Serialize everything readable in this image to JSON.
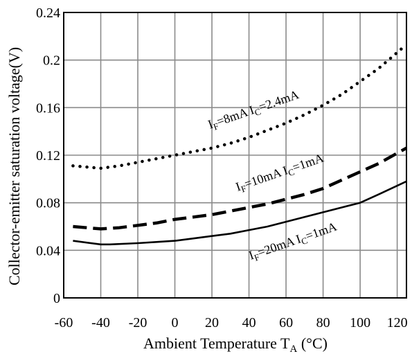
{
  "chart_data": {
    "type": "line",
    "title": "",
    "xlabel": {
      "main": "Ambient Temperature T",
      "sub": "A",
      "unit": " (°C)"
    },
    "ylabel": "Collector-emitter saturation voltage(V)",
    "xlim": [
      -60,
      125
    ],
    "ylim": [
      0,
      0.24
    ],
    "x_ticks": [
      "-60",
      "-40",
      "-20",
      "0",
      "20",
      "40",
      "60",
      "80",
      "100",
      "120"
    ],
    "x_tick_values": [
      -60,
      -40,
      -20,
      0,
      20,
      40,
      60,
      80,
      100,
      120
    ],
    "y_ticks": [
      "0",
      "0.04",
      "0.08",
      "0.12",
      "0.16",
      "0.2",
      "0.24"
    ],
    "y_tick_values": [
      0,
      0.04,
      0.08,
      0.12,
      0.16,
      0.2,
      0.24
    ],
    "grid": true,
    "series": [
      {
        "label": {
          "p1": "I",
          "s1": "F",
          "p2": "=8mA I",
          "s2": "C",
          "p3": "=2.4mA"
        },
        "style": "dotted",
        "x": [
          -55,
          -40,
          -30,
          -20,
          -10,
          0,
          10,
          20,
          30,
          40,
          50,
          60,
          70,
          80,
          90,
          100,
          110,
          125
        ],
        "y": [
          0.111,
          0.109,
          0.111,
          0.114,
          0.117,
          0.12,
          0.123,
          0.126,
          0.13,
          0.135,
          0.141,
          0.147,
          0.154,
          0.162,
          0.171,
          0.182,
          0.193,
          0.213
        ]
      },
      {
        "label": {
          "p1": "I",
          "s1": "F",
          "p2": "=10mA I",
          "s2": "C",
          "p3": "=1mA"
        },
        "style": "dashed",
        "x": [
          -55,
          -40,
          -30,
          -20,
          -10,
          0,
          10,
          20,
          30,
          40,
          50,
          60,
          70,
          80,
          90,
          100,
          110,
          125
        ],
        "y": [
          0.06,
          0.058,
          0.059,
          0.061,
          0.063,
          0.066,
          0.068,
          0.07,
          0.073,
          0.076,
          0.079,
          0.083,
          0.087,
          0.092,
          0.099,
          0.106,
          0.113,
          0.126
        ]
      },
      {
        "label": {
          "p1": "I",
          "s1": "F",
          "p2": "=20mA I",
          "s2": "C",
          "p3": "=1mA"
        },
        "style": "solid",
        "x": [
          -55,
          -40,
          -35,
          -20,
          -10,
          0,
          10,
          20,
          30,
          40,
          50,
          60,
          70,
          80,
          90,
          100,
          110,
          125
        ],
        "y": [
          0.048,
          0.045,
          0.045,
          0.046,
          0.047,
          0.048,
          0.05,
          0.052,
          0.054,
          0.057,
          0.06,
          0.064,
          0.068,
          0.072,
          0.076,
          0.08,
          0.087,
          0.098
        ]
      }
    ]
  }
}
